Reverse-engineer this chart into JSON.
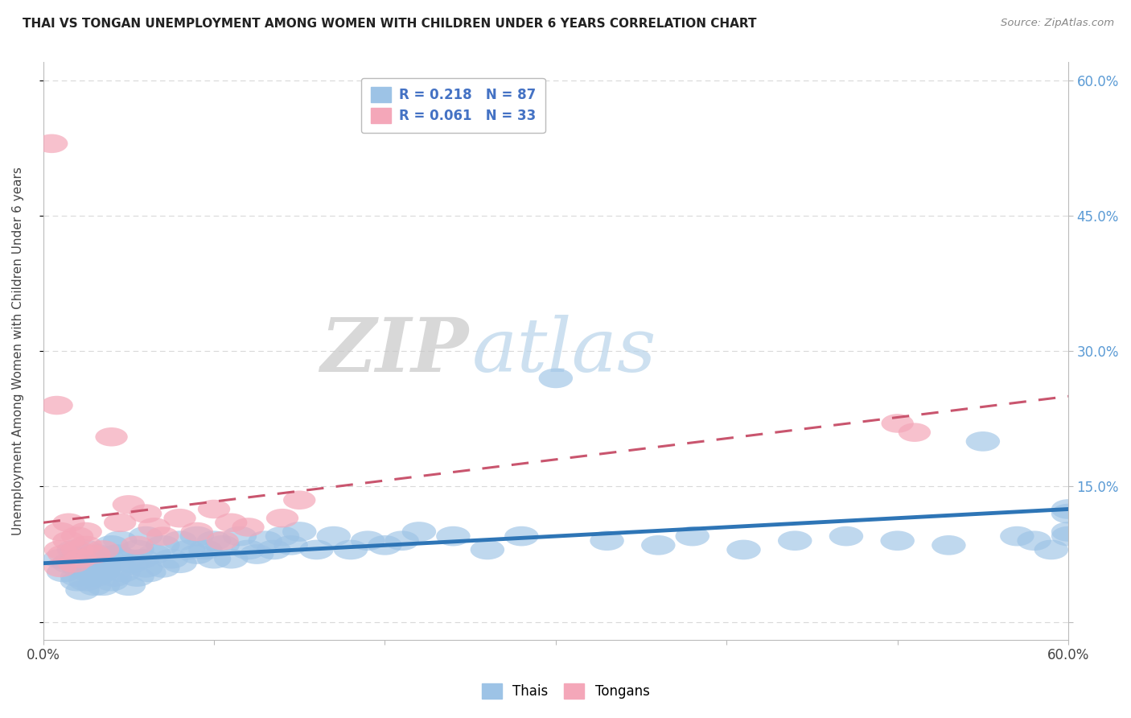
{
  "title": "THAI VS TONGAN UNEMPLOYMENT AMONG WOMEN WITH CHILDREN UNDER 6 YEARS CORRELATION CHART",
  "source": "Source: ZipAtlas.com",
  "ylabel": "Unemployment Among Women with Children Under 6 years",
  "xlim": [
    0.0,
    60.0
  ],
  "ylim": [
    -2.0,
    62.0
  ],
  "ytick_positions": [
    0,
    15,
    30,
    45,
    60
  ],
  "ytick_labels_right": [
    "",
    "15.0%",
    "30.0%",
    "45.0%",
    "60.0%"
  ],
  "xtick_positions": [
    0.0,
    10.0,
    20.0,
    30.0,
    40.0,
    50.0,
    60.0
  ],
  "xtick_labels": [
    "0.0%",
    "",
    "",
    "",
    "",
    "",
    "60.0%"
  ],
  "blue_color": "#9dc3e6",
  "pink_color": "#f4a7b9",
  "blue_line_color": "#2e75b6",
  "pink_line_color": "#c9556e",
  "watermark_zip": "ZIP",
  "watermark_atlas": "atlas",
  "background_color": "#ffffff",
  "grid_color": "#d9d9d9",
  "thai_scatter_x": [
    1.0,
    1.2,
    1.5,
    1.8,
    2.0,
    2.0,
    2.1,
    2.2,
    2.3,
    2.5,
    2.5,
    2.7,
    2.8,
    3.0,
    3.0,
    3.1,
    3.2,
    3.3,
    3.5,
    3.5,
    3.6,
    3.8,
    4.0,
    4.0,
    4.2,
    4.3,
    4.5,
    4.5,
    4.7,
    5.0,
    5.0,
    5.2,
    5.5,
    5.5,
    5.8,
    6.0,
    6.0,
    6.2,
    6.5,
    7.0,
    7.0,
    7.5,
    8.0,
    8.0,
    8.5,
    9.0,
    9.0,
    9.5,
    10.0,
    10.0,
    10.5,
    11.0,
    11.5,
    12.0,
    12.5,
    13.0,
    13.5,
    14.0,
    14.5,
    15.0,
    16.0,
    17.0,
    18.0,
    19.0,
    20.0,
    21.0,
    22.0,
    24.0,
    26.0,
    28.0,
    30.0,
    33.0,
    36.0,
    38.0,
    41.0,
    44.0,
    47.0,
    50.0,
    53.0,
    55.0,
    57.0,
    58.0,
    59.0,
    60.0,
    60.0,
    60.0,
    60.0
  ],
  "thai_scatter_y": [
    7.0,
    5.5,
    6.5,
    8.0,
    4.5,
    5.0,
    6.0,
    7.0,
    3.5,
    4.5,
    8.0,
    5.5,
    7.0,
    4.0,
    6.0,
    5.0,
    7.5,
    6.5,
    4.0,
    5.5,
    6.0,
    7.0,
    4.5,
    8.5,
    5.0,
    7.5,
    6.0,
    9.0,
    5.5,
    4.0,
    7.0,
    6.5,
    5.0,
    8.0,
    7.0,
    6.0,
    9.5,
    5.5,
    7.5,
    6.0,
    8.5,
    7.0,
    6.5,
    9.0,
    8.0,
    7.5,
    9.5,
    8.0,
    7.0,
    9.0,
    8.5,
    7.0,
    9.5,
    8.0,
    7.5,
    9.0,
    8.0,
    9.5,
    8.5,
    10.0,
    8.0,
    9.5,
    8.0,
    9.0,
    8.5,
    9.0,
    10.0,
    9.5,
    8.0,
    9.5,
    27.0,
    9.0,
    8.5,
    9.5,
    8.0,
    9.0,
    9.5,
    9.0,
    8.5,
    20.0,
    9.5,
    9.0,
    8.0,
    12.0,
    10.0,
    9.5,
    12.5
  ],
  "tongan_scatter_x": [
    0.5,
    0.8,
    1.0,
    1.0,
    1.0,
    1.2,
    1.5,
    1.5,
    1.8,
    2.0,
    2.0,
    2.2,
    2.5,
    2.5,
    3.0,
    3.5,
    4.0,
    4.5,
    5.0,
    5.5,
    6.0,
    6.5,
    7.0,
    8.0,
    9.0,
    10.0,
    10.5,
    11.0,
    12.0,
    14.0,
    15.0,
    50.0,
    51.0
  ],
  "tongan_scatter_y": [
    53.0,
    24.0,
    10.0,
    8.0,
    6.0,
    7.5,
    9.0,
    11.0,
    6.5,
    8.0,
    9.5,
    7.0,
    8.5,
    10.0,
    7.5,
    8.0,
    20.5,
    11.0,
    13.0,
    8.5,
    12.0,
    10.5,
    9.5,
    11.5,
    10.0,
    12.5,
    9.0,
    11.0,
    10.5,
    11.5,
    13.5,
    22.0,
    21.0
  ],
  "thai_trend_x": [
    0.0,
    60.0
  ],
  "thai_trend_y_start": 6.5,
  "thai_trend_y_end": 12.5,
  "tongan_trend_x": [
    0.0,
    60.0
  ],
  "tongan_trend_y_start": 11.0,
  "tongan_trend_y_end": 25.0
}
